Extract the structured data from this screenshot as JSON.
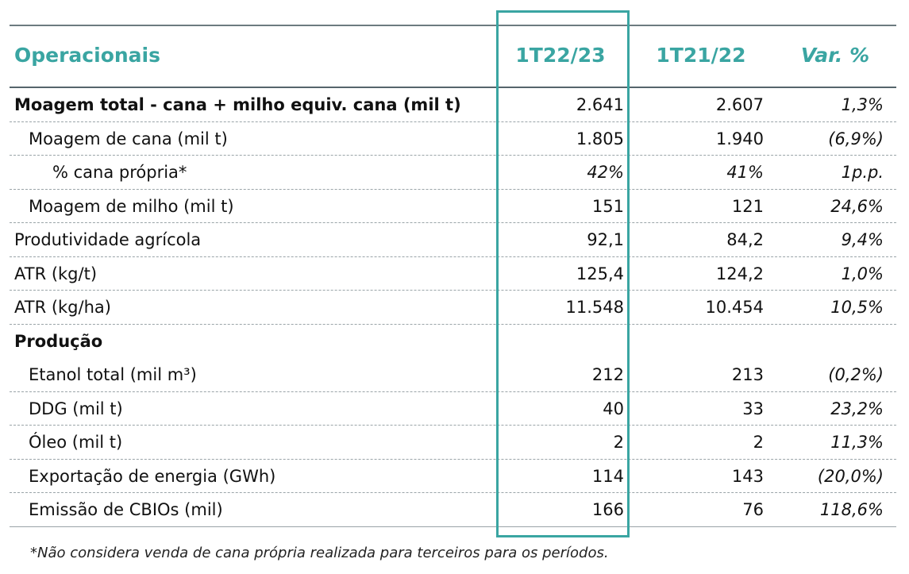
{
  "table": {
    "header": {
      "label": "Operacionais",
      "col1": "1T22/23",
      "col2": "1T21/22",
      "col3": "Var. %"
    },
    "rows": [
      {
        "label": "Moagem total - cana + milho equiv. cana (mil t)",
        "v1": "2.641",
        "v2": "2.607",
        "v3": "1,3%",
        "style": "bold",
        "indent": 0
      },
      {
        "label": "Moagem de cana (mil t)",
        "v1": "1.805",
        "v2": "1.940",
        "v3": "(6,9%)",
        "style": "normal",
        "indent": 1
      },
      {
        "label": "% cana própria*",
        "v1": "42%",
        "v2": "41%",
        "v3": "1p.p.",
        "style": "italic-values",
        "indent": 2
      },
      {
        "label": "Moagem de milho (mil t)",
        "v1": "151",
        "v2": "121",
        "v3": "24,6%",
        "style": "normal",
        "indent": 1
      },
      {
        "label": "Produtividade agrícola",
        "v1": "92,1",
        "v2": "84,2",
        "v3": "9,4%",
        "style": "normal",
        "indent": 0
      },
      {
        "label": "ATR (kg/t)",
        "v1": "125,4",
        "v2": "124,2",
        "v3": "1,0%",
        "style": "normal",
        "indent": 0
      },
      {
        "label": "ATR (kg/ha)",
        "v1": "11.548",
        "v2": "10.454",
        "v3": "10,5%",
        "style": "normal",
        "indent": 0
      },
      {
        "label": "Produção",
        "v1": "",
        "v2": "",
        "v3": "",
        "style": "section",
        "indent": 0
      },
      {
        "label": "Etanol total (mil m³)",
        "v1": "212",
        "v2": "213",
        "v3": "(0,2%)",
        "style": "normal",
        "indent": 1
      },
      {
        "label": "DDG (mil t)",
        "v1": "40",
        "v2": "33",
        "v3": "23,2%",
        "style": "normal",
        "indent": 1
      },
      {
        "label": "Óleo (mil t)",
        "v1": "2",
        "v2": "2",
        "v3": "11,3%",
        "style": "normal",
        "indent": 1
      },
      {
        "label": "Exportação de energia (GWh)",
        "v1": "114",
        "v2": "143",
        "v3": "(20,0%)",
        "style": "normal",
        "indent": 1
      },
      {
        "label": "Emissão de CBIOs (mil)",
        "v1": "166",
        "v2": "76",
        "v3": "118,6%",
        "style": "normal",
        "indent": 1
      }
    ]
  },
  "footnote": "*Não considera venda de cana própria realizada para terceiros para os períodos.",
  "colors": {
    "accent": "#3aa5a2",
    "rule": "#55656b",
    "text": "#111111"
  }
}
